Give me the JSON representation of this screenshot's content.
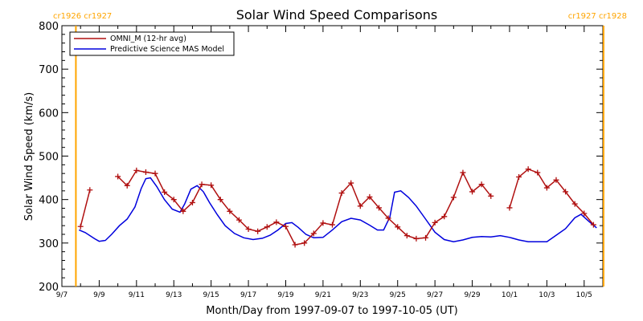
{
  "chart_data": {
    "type": "line",
    "title": "Solar Wind Speed Comparisons",
    "xlabel": "Month/Day from 1997-09-07 to 1997-10-05 (UT)",
    "ylabel": "Solar Wind Speed (km/s)",
    "xlim": [
      "1997-09-07",
      "1997-10-06"
    ],
    "ylim": [
      200,
      800
    ],
    "x_ticks": [
      "9/7",
      "9/9",
      "9/11",
      "9/13",
      "9/15",
      "9/17",
      "9/19",
      "9/21",
      "9/23",
      "9/25",
      "9/27",
      "9/29",
      "10/1",
      "10/3",
      "10/5"
    ],
    "y_ticks": [
      "200",
      "300",
      "400",
      "500",
      "600",
      "700",
      "800"
    ],
    "grid": false,
    "legend_position": "top-left",
    "carrington_markers": [
      {
        "date": "1997-09-07 18:00",
        "label": "cr1926 cr1927",
        "color": "#FFA500"
      },
      {
        "date": "1997-10-06 01:00",
        "label": "cr1927 cr1928",
        "color": "#FFA500"
      }
    ],
    "series": [
      {
        "name": "OMNI_M (12-hr avg)",
        "color": "#B01010",
        "marker": "+",
        "segments": [
          [
            [
              "1997-09-08 00:00",
              338
            ],
            [
              "1997-09-08 12:00",
              422
            ]
          ],
          [
            [
              "1997-09-10 00:00",
              453
            ],
            [
              "1997-09-10 12:00",
              432
            ],
            [
              "1997-09-11 00:00",
              467
            ],
            [
              "1997-09-11 12:00",
              463
            ],
            [
              "1997-09-12 00:00",
              460
            ],
            [
              "1997-09-12 12:00",
              417
            ],
            [
              "1997-09-13 00:00",
              400
            ],
            [
              "1997-09-13 12:00",
              373
            ],
            [
              "1997-09-14 00:00",
              393
            ],
            [
              "1997-09-14 12:00",
              435
            ],
            [
              "1997-09-15 00:00",
              433
            ],
            [
              "1997-09-15 12:00",
              400
            ],
            [
              "1997-09-16 00:00",
              373
            ],
            [
              "1997-09-16 12:00",
              353
            ],
            [
              "1997-09-17 00:00",
              332
            ],
            [
              "1997-09-17 12:00",
              327
            ],
            [
              "1997-09-18 00:00",
              337
            ],
            [
              "1997-09-18 12:00",
              348
            ],
            [
              "1997-09-19 00:00",
              338
            ],
            [
              "1997-09-19 12:00",
              296
            ],
            [
              "1997-09-20 00:00",
              300
            ],
            [
              "1997-09-20 12:00",
              322
            ],
            [
              "1997-09-21 00:00",
              346
            ],
            [
              "1997-09-21 12:00",
              342
            ],
            [
              "1997-09-22 00:00",
              415
            ],
            [
              "1997-09-22 12:00",
              438
            ],
            [
              "1997-09-23 00:00",
              385
            ],
            [
              "1997-09-23 12:00",
              406
            ],
            [
              "1997-09-24 00:00",
              381
            ],
            [
              "1997-09-24 12:00",
              357
            ],
            [
              "1997-09-25 00:00",
              337
            ],
            [
              "1997-09-25 12:00",
              317
            ],
            [
              "1997-09-26 00:00",
              310
            ],
            [
              "1997-09-26 12:00",
              312
            ],
            [
              "1997-09-27 00:00",
              347
            ],
            [
              "1997-09-27 12:00",
              361
            ],
            [
              "1997-09-28 00:00",
              405
            ],
            [
              "1997-09-28 12:00",
              462
            ],
            [
              "1997-09-29 00:00",
              418
            ],
            [
              "1997-09-29 12:00",
              435
            ],
            [
              "1997-09-30 00:00",
              408
            ]
          ],
          [
            [
              "1997-10-01 00:00",
              381
            ],
            [
              "1997-10-01 12:00",
              452
            ],
            [
              "1997-10-02 00:00",
              470
            ],
            [
              "1997-10-02 12:00",
              462
            ],
            [
              "1997-10-03 00:00",
              427
            ],
            [
              "1997-10-03 12:00",
              445
            ],
            [
              "1997-10-04 00:00",
              418
            ],
            [
              "1997-10-04 12:00",
              390
            ],
            [
              "1997-10-05 00:00",
              368
            ],
            [
              "1997-10-05 12:00",
              342
            ]
          ]
        ]
      },
      {
        "name": "Predictive Science MAS Model",
        "color": "#0000DD",
        "points": [
          [
            "1997-09-07 22:00",
            330
          ],
          [
            "1997-09-08 06:00",
            324
          ],
          [
            "1997-09-08 18:00",
            310
          ],
          [
            "1997-09-09 00:00",
            304
          ],
          [
            "1997-09-09 08:00",
            306
          ],
          [
            "1997-09-09 16:00",
            320
          ],
          [
            "1997-09-10 02:00",
            340
          ],
          [
            "1997-09-10 12:00",
            355
          ],
          [
            "1997-09-10 22:00",
            383
          ],
          [
            "1997-09-11 06:00",
            425
          ],
          [
            "1997-09-11 12:00",
            448
          ],
          [
            "1997-09-11 18:00",
            450
          ],
          [
            "1997-09-12 02:00",
            430
          ],
          [
            "1997-09-12 12:00",
            400
          ],
          [
            "1997-09-12 22:00",
            378
          ],
          [
            "1997-09-13 08:00",
            371
          ],
          [
            "1997-09-13 14:00",
            390
          ],
          [
            "1997-09-13 22:00",
            424
          ],
          [
            "1997-09-14 06:00",
            432
          ],
          [
            "1997-09-14 14:00",
            418
          ],
          [
            "1997-09-14 22:00",
            393
          ],
          [
            "1997-09-15 08:00",
            365
          ],
          [
            "1997-09-15 18:00",
            340
          ],
          [
            "1997-09-16 06:00",
            322
          ],
          [
            "1997-09-16 18:00",
            312
          ],
          [
            "1997-09-17 06:00",
            308
          ],
          [
            "1997-09-17 18:00",
            311
          ],
          [
            "1997-09-18 04:00",
            318
          ],
          [
            "1997-09-18 14:00",
            330
          ],
          [
            "1997-09-19 00:00",
            345
          ],
          [
            "1997-09-19 08:00",
            347
          ],
          [
            "1997-09-19 16:00",
            336
          ],
          [
            "1997-09-20 02:00",
            320
          ],
          [
            "1997-09-20 12:00",
            312
          ],
          [
            "1997-09-21 00:00",
            313
          ],
          [
            "1997-09-21 12:00",
            330
          ],
          [
            "1997-09-22 00:00",
            349
          ],
          [
            "1997-09-22 12:00",
            357
          ],
          [
            "1997-09-23 00:00",
            353
          ],
          [
            "1997-09-23 12:00",
            341
          ],
          [
            "1997-09-23 22:00",
            330
          ],
          [
            "1997-09-24 06:00",
            330
          ],
          [
            "1997-09-24 14:00",
            360
          ],
          [
            "1997-09-24 20:00",
            417
          ],
          [
            "1997-09-25 04:00",
            420
          ],
          [
            "1997-09-25 14:00",
            405
          ],
          [
            "1997-09-26 00:00",
            385
          ],
          [
            "1997-09-26 12:00",
            355
          ],
          [
            "1997-09-27 00:00",
            325
          ],
          [
            "1997-09-27 12:00",
            308
          ],
          [
            "1997-09-28 00:00",
            303
          ],
          [
            "1997-09-28 12:00",
            307
          ],
          [
            "1997-09-29 00:00",
            313
          ],
          [
            "1997-09-29 12:00",
            315
          ],
          [
            "1997-09-30 00:00",
            314
          ],
          [
            "1997-09-30 12:00",
            317
          ],
          [
            "1997-10-01 00:00",
            313
          ],
          [
            "1997-10-01 12:00",
            307
          ],
          [
            "1997-10-02 00:00",
            303
          ],
          [
            "1997-10-02 12:00",
            303
          ],
          [
            "1997-10-03 00:00",
            303
          ],
          [
            "1997-10-03 12:00",
            318
          ],
          [
            "1997-10-04 00:00",
            333
          ],
          [
            "1997-10-04 12:00",
            358
          ],
          [
            "1997-10-04 20:00",
            366
          ],
          [
            "1997-10-05 06:00",
            350
          ],
          [
            "1997-10-05 16:00",
            335
          ]
        ]
      }
    ]
  }
}
